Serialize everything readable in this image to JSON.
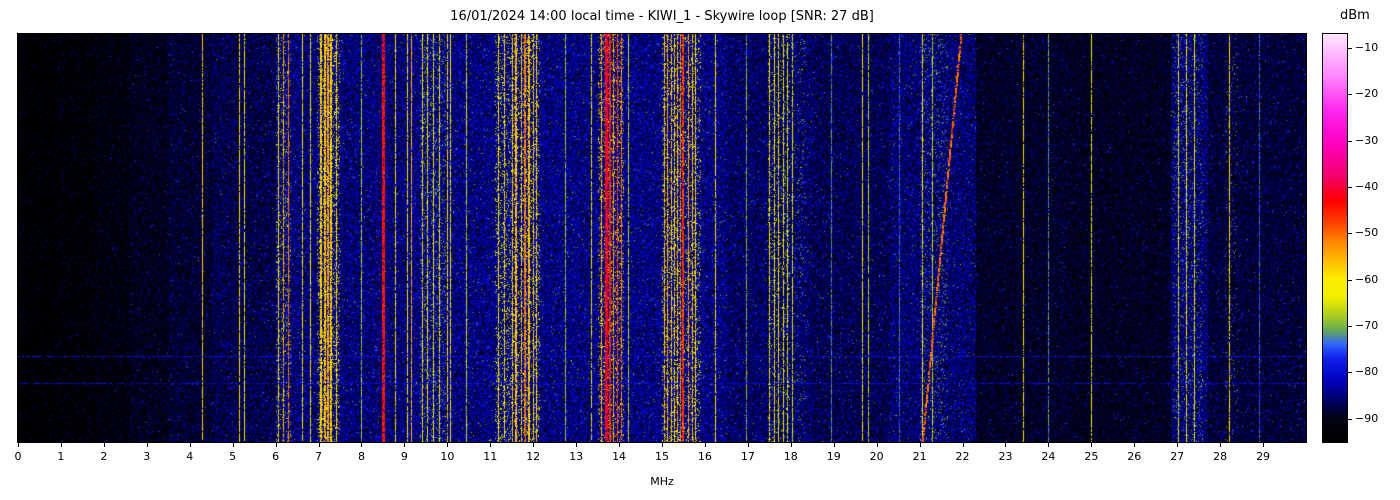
{
  "title": "16/01/2024 14:00 local time - KIWI_1 - Skywire loop [SNR: 27 dB]",
  "colorbar": {
    "label": "dBm",
    "ticks": [
      "−10",
      "−20",
      "−30",
      "−40",
      "−50",
      "−60",
      "−70",
      "−80",
      "−90"
    ],
    "tick_values": [
      -10,
      -20,
      -30,
      -40,
      -50,
      -60,
      -70,
      -80,
      -90
    ]
  },
  "x_axis": {
    "label": "MHz",
    "tick_labels": [
      "0",
      "1",
      "2",
      "3",
      "4",
      "5",
      "6",
      "7",
      "8",
      "9",
      "10",
      "11",
      "12",
      "13",
      "14",
      "15",
      "16",
      "17",
      "18",
      "19",
      "20",
      "21",
      "22",
      "23",
      "24",
      "25",
      "26",
      "27",
      "28",
      "29"
    ],
    "range_mhz": [
      0,
      30
    ]
  },
  "chart_data": {
    "type": "heatmap",
    "subtype": "hf-spectrogram-waterfall",
    "title": "16/01/2024 14:00 local time - KIWI_1 - Skywire loop [SNR: 27 dB]",
    "xlabel": "MHz",
    "value_label": "dBm",
    "x_range_mhz": [
      0,
      30
    ],
    "value_range_dbm": [
      -95,
      -7
    ],
    "snr_db": 27,
    "colormap": [
      [
        -95,
        "#000000"
      ],
      [
        -90,
        "#020213"
      ],
      [
        -87,
        "#000055"
      ],
      [
        -82,
        "#0000bb"
      ],
      [
        -77,
        "#1122ee"
      ],
      [
        -74,
        "#3366ff"
      ],
      [
        -71,
        "#66aa55"
      ],
      [
        -68,
        "#aacc22"
      ],
      [
        -64,
        "#eeee00"
      ],
      [
        -60,
        "#ffee00"
      ],
      [
        -56,
        "#ffbb00"
      ],
      [
        -52,
        "#ff8800"
      ],
      [
        -48,
        "#ff4400"
      ],
      [
        -43,
        "#ff0000"
      ],
      [
        -38,
        "#f40066"
      ],
      [
        -31,
        "#ff00bb"
      ],
      [
        -24,
        "#ff22ee"
      ],
      [
        -16,
        "#ff88ff"
      ],
      [
        -7,
        "#ffe6ff"
      ]
    ],
    "noise_regions": [
      [
        0,
        0.9,
        -95,
        4
      ],
      [
        0.9,
        1.8,
        -94,
        6
      ],
      [
        1.8,
        2.6,
        -92.5,
        8
      ],
      [
        2.6,
        3.5,
        -91,
        9
      ],
      [
        3.5,
        4.5,
        -89.5,
        10
      ],
      [
        4.5,
        6,
        -88,
        11
      ],
      [
        6,
        9,
        -85.5,
        12
      ],
      [
        9,
        13,
        -85,
        12
      ],
      [
        13,
        16.5,
        -85,
        12
      ],
      [
        16.5,
        18.5,
        -86.5,
        11
      ],
      [
        18.5,
        20.3,
        -87.5,
        11
      ],
      [
        20.3,
        22.3,
        -86,
        12
      ],
      [
        22.3,
        24.5,
        -90,
        9
      ],
      [
        24.5,
        26.85,
        -90.5,
        9
      ],
      [
        26.85,
        27.7,
        -86,
        12
      ],
      [
        27.7,
        30,
        -89,
        10
      ]
    ],
    "activity_bands": [
      [
        6.0,
        6.35,
        -68,
        0.35
      ],
      [
        6.95,
        7.5,
        -62,
        0.5
      ],
      [
        9.35,
        9.95,
        -70,
        0.35
      ],
      [
        11.1,
        12.15,
        -63,
        0.45
      ],
      [
        13.5,
        14.1,
        -57,
        0.55
      ],
      [
        15.0,
        15.9,
        -61,
        0.45
      ],
      [
        17.45,
        17.98,
        -68,
        0.3
      ],
      [
        18.0,
        18.35,
        -72,
        0.22
      ],
      [
        21.0,
        21.65,
        -72,
        0.3
      ],
      [
        26.9,
        27.6,
        -72,
        0.3
      ],
      [
        28.1,
        28.4,
        -74,
        0.18
      ]
    ],
    "carriers": [
      [
        4.28,
        -58,
        1
      ],
      [
        5.15,
        -60,
        1
      ],
      [
        5.27,
        -62,
        1
      ],
      [
        6.06,
        -60,
        1
      ],
      [
        6.17,
        -55,
        1
      ],
      [
        6.29,
        -52,
        1
      ],
      [
        6.62,
        -62,
        1
      ],
      [
        6.8,
        -60,
        1
      ],
      [
        7.05,
        -58,
        2
      ],
      [
        7.15,
        -57,
        2
      ],
      [
        7.22,
        -55,
        2
      ],
      [
        7.3,
        -58,
        2
      ],
      [
        7.41,
        -60,
        1
      ],
      [
        8.0,
        -68,
        1
      ],
      [
        8.5,
        -44,
        3
      ],
      [
        8.78,
        -60,
        1
      ],
      [
        9.05,
        -62,
        1
      ],
      [
        9.15,
        -55,
        1
      ],
      [
        9.42,
        -62,
        1
      ],
      [
        9.53,
        -60,
        1
      ],
      [
        9.66,
        -62,
        1
      ],
      [
        9.8,
        -63,
        1
      ],
      [
        10.0,
        -60,
        1
      ],
      [
        10.07,
        -62,
        1
      ],
      [
        10.44,
        -66,
        1
      ],
      [
        11.17,
        -62,
        1
      ],
      [
        11.32,
        -60,
        1
      ],
      [
        11.5,
        -58,
        1
      ],
      [
        11.6,
        -57,
        2
      ],
      [
        11.71,
        -58,
        1
      ],
      [
        11.8,
        -52,
        2
      ],
      [
        11.9,
        -57,
        2
      ],
      [
        12.0,
        -58,
        1
      ],
      [
        12.07,
        -60,
        1
      ],
      [
        12.73,
        -68,
        1
      ],
      [
        13.35,
        -64,
        1
      ],
      [
        13.57,
        -56,
        1
      ],
      [
        13.69,
        -42,
        3
      ],
      [
        13.78,
        -45,
        2
      ],
      [
        13.87,
        -55,
        1
      ],
      [
        13.95,
        -48,
        1
      ],
      [
        14.05,
        -52,
        1
      ],
      [
        14.21,
        -66,
        1
      ],
      [
        15.04,
        -58,
        1
      ],
      [
        15.12,
        -56,
        1
      ],
      [
        15.2,
        -58,
        1
      ],
      [
        15.29,
        -60,
        1
      ],
      [
        15.35,
        -57,
        1
      ],
      [
        15.43,
        -52,
        1
      ],
      [
        15.5,
        -47,
        2
      ],
      [
        15.61,
        -55,
        1
      ],
      [
        15.7,
        -58,
        1
      ],
      [
        15.77,
        -60,
        1
      ],
      [
        16.23,
        -60,
        1
      ],
      [
        16.95,
        -70,
        1
      ],
      [
        17.49,
        -60,
        1
      ],
      [
        17.6,
        -62,
        1
      ],
      [
        17.71,
        -60,
        1
      ],
      [
        17.81,
        -62,
        1
      ],
      [
        17.9,
        -63,
        1
      ],
      [
        18.03,
        -64,
        1
      ],
      [
        18.93,
        -72,
        1
      ],
      [
        19.65,
        -62,
        1
      ],
      [
        19.8,
        -66,
        1
      ],
      [
        20.52,
        -74,
        1
      ],
      [
        21.06,
        -62,
        1
      ],
      [
        21.29,
        -66,
        1
      ],
      [
        23.41,
        -60,
        1
      ],
      [
        24.0,
        -72,
        1
      ],
      [
        25.0,
        -62,
        1
      ],
      [
        27.02,
        -64,
        1
      ],
      [
        27.2,
        -62,
        1
      ],
      [
        27.38,
        -64,
        1
      ],
      [
        28.2,
        -60,
        1
      ],
      [
        28.9,
        -74,
        1
      ]
    ],
    "sweep": {
      "f_bottom_mhz": 21.05,
      "f_top_mhz": 21.95,
      "dbm": -50
    },
    "horizontal_rows": [
      {
        "frac": 0.79,
        "dbm": -79
      },
      {
        "frac": 0.856,
        "dbm": -80
      }
    ]
  }
}
